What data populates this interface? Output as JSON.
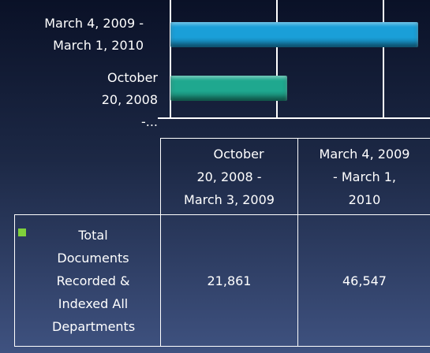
{
  "chart_data": {
    "type": "bar",
    "orientation": "horizontal",
    "categories": [
      "October 20, 2008 - March 3, 2009",
      "March 4, 2009 - March 1, 2010"
    ],
    "axis_labels": [
      "October 20, 2008 -...",
      "March 4, 2009 - March 1, 2010"
    ],
    "series": [
      {
        "name": "Total Documents Recorded & Indexed All Departments",
        "color": "#7fd13b",
        "bar_colors": [
          "#1fa88f",
          "#1a9fd8"
        ],
        "values": [
          21861,
          46547
        ],
        "value_labels": [
          "21,861",
          "46,547"
        ]
      }
    ],
    "xlim": [
      0,
      48000
    ],
    "xticks": [
      0,
      20000,
      40000
    ],
    "grid": true,
    "data_table": true
  }
}
